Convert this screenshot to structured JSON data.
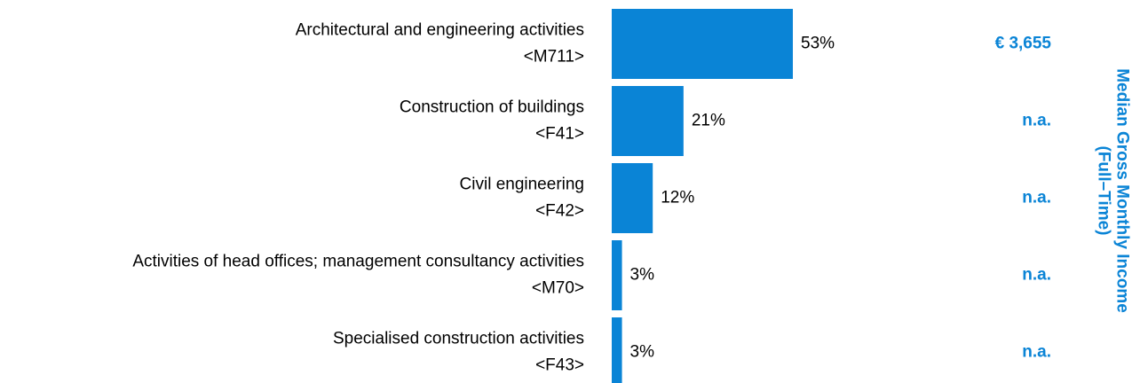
{
  "chart_data": {
    "type": "bar",
    "orientation": "horizontal",
    "categories": [
      "Architectural and engineering activities",
      "Construction of buildings",
      "Civil engineering",
      "Activities of head offices; management consultancy activities",
      "Specialised construction activities"
    ],
    "codes": [
      "<M711>",
      "<F41>",
      "<F42>",
      "<M70>",
      "<F43>"
    ],
    "values": [
      53,
      21,
      12,
      3,
      3
    ],
    "value_labels": [
      "53%",
      "21%",
      "12%",
      "3%",
      "3%"
    ],
    "color": "#0a84d6",
    "incomes": [
      "€ 3,655",
      "n.a.",
      "n.a.",
      "n.a.",
      "n.a."
    ],
    "side_title": [
      "Median Gross Monthly Income",
      "(Full–Time)"
    ]
  }
}
